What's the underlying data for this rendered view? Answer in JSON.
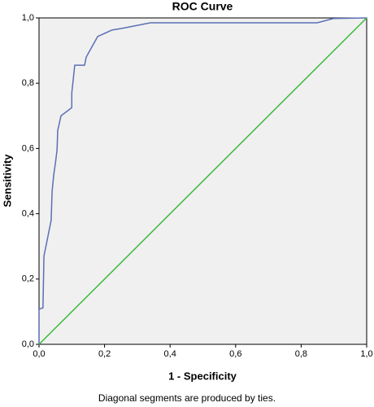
{
  "chart_data": {
    "type": "line",
    "title": "ROC Curve",
    "x_label": "1 - Specificity",
    "y_label": "Sensitivity",
    "note": "Diagonal segments are produced by ties.",
    "xlim": [
      0,
      1
    ],
    "ylim": [
      0,
      1
    ],
    "xticks": [
      {
        "value": 0,
        "label": "0,0"
      },
      {
        "value": 0.2,
        "label": "0,2"
      },
      {
        "value": 0.4,
        "label": "0,4"
      },
      {
        "value": 0.6,
        "label": "0,6"
      },
      {
        "value": 0.8,
        "label": "0,8"
      },
      {
        "value": 1,
        "label": "1,0"
      }
    ],
    "yticks": [
      {
        "value": 0,
        "label": "0,0"
      },
      {
        "value": 0.2,
        "label": "0,2"
      },
      {
        "value": 0.4,
        "label": "0,4"
      },
      {
        "value": 0.6,
        "label": "0,6"
      },
      {
        "value": 0.8,
        "label": "0,8"
      },
      {
        "value": 1,
        "label": "1,0"
      }
    ],
    "plot_background": "#f0f0f0",
    "series": [
      {
        "color": "#5b6fb5",
        "x": [
          0,
          0,
          0.012,
          0.015,
          0.037,
          0.04,
          0.045,
          0.05,
          0.055,
          0.057,
          0.067,
          0.1,
          0.1,
          0.109,
          0.139,
          0.144,
          0.179,
          0.223,
          0.253,
          0.34,
          0.849,
          0.898,
          1
        ],
        "values": [
          0,
          0.107,
          0.112,
          0.27,
          0.38,
          0.47,
          0.52,
          0.555,
          0.595,
          0.655,
          0.7,
          0.725,
          0.77,
          0.855,
          0.855,
          0.88,
          0.943,
          0.963,
          0.968,
          0.985,
          0.985,
          0.998,
          1
        ]
      },
      {
        "color": "#3cb93c",
        "x": [
          0,
          1
        ],
        "values": [
          0,
          1
        ]
      }
    ]
  }
}
